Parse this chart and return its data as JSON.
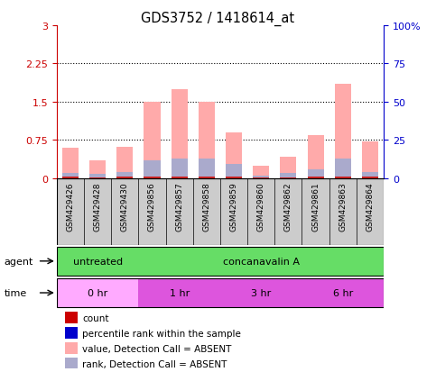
{
  "title": "GDS3752 / 1418614_at",
  "samples": [
    "GSM429426",
    "GSM429428",
    "GSM429430",
    "GSM429856",
    "GSM429857",
    "GSM429858",
    "GSM429859",
    "GSM429860",
    "GSM429862",
    "GSM429861",
    "GSM429863",
    "GSM429864"
  ],
  "pink_values": [
    0.6,
    0.35,
    0.62,
    1.5,
    1.75,
    1.5,
    0.9,
    0.25,
    0.42,
    0.85,
    1.85,
    0.72
  ],
  "blue_values": [
    0.1,
    0.09,
    0.12,
    0.35,
    0.38,
    0.38,
    0.28,
    0.05,
    0.1,
    0.18,
    0.38,
    0.12
  ],
  "red_values": [
    0.03,
    0.02,
    0.03,
    0.03,
    0.03,
    0.03,
    0.03,
    0.02,
    0.02,
    0.03,
    0.03,
    0.03
  ],
  "ylim_left": [
    0,
    3
  ],
  "ylim_right": [
    0,
    100
  ],
  "yticks_left": [
    0,
    0.75,
    1.5,
    2.25,
    3
  ],
  "yticks_right": [
    0,
    25,
    50,
    75,
    100
  ],
  "ytick_labels_left": [
    "0",
    "0.75",
    "1.5",
    "2.25",
    "3"
  ],
  "ytick_labels_right": [
    "0",
    "25",
    "50",
    "75",
    "100%"
  ],
  "bar_width": 0.6,
  "pink_color": "#ffaaaa",
  "blue_color": "#aaaacc",
  "red_color": "#cc2222",
  "bg_color": "#ffffff",
  "tick_color_left": "#cc0000",
  "tick_color_right": "#0000cc",
  "sample_bg_color": "#cccccc",
  "agent_green": "#66dd66",
  "time_pink_light": "#ffaaff",
  "time_pink_dark": "#dd55dd",
  "legend_items": [
    {
      "color": "#cc0000",
      "label": "count"
    },
    {
      "color": "#0000cc",
      "label": "percentile rank within the sample"
    },
    {
      "color": "#ffaaaa",
      "label": "value, Detection Call = ABSENT"
    },
    {
      "color": "#aaaacc",
      "label": "rank, Detection Call = ABSENT"
    }
  ],
  "agent_groups": [
    {
      "label": "untreated",
      "start": 0,
      "end": 3
    },
    {
      "label": "concanavalin A",
      "start": 3,
      "end": 12
    }
  ],
  "time_groups": [
    {
      "label": "0 hr",
      "start": 0,
      "end": 3,
      "light": true
    },
    {
      "label": "1 hr",
      "start": 3,
      "end": 6,
      "light": false
    },
    {
      "label": "3 hr",
      "start": 6,
      "end": 9,
      "light": false
    },
    {
      "label": "6 hr",
      "start": 9,
      "end": 12,
      "light": false
    }
  ]
}
